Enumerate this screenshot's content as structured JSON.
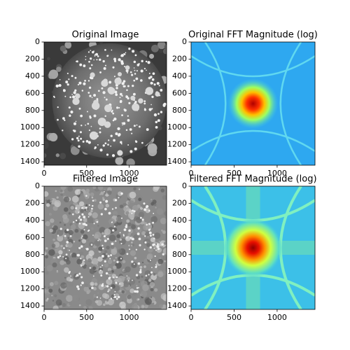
{
  "chart_data": [
    {
      "type": "image",
      "title": "Original Image",
      "cmap": "gray",
      "xlim": [
        0,
        1440
      ],
      "ylim": [
        1440,
        0
      ],
      "xticks": [
        0,
        500,
        1000
      ],
      "yticks": [
        0,
        200,
        400,
        600,
        800,
        1000,
        1200,
        1400
      ]
    },
    {
      "type": "image",
      "title": "Original FFT Magnitude (log)",
      "cmap": "jet",
      "xlim": [
        0,
        1440
      ],
      "ylim": [
        1440,
        0
      ],
      "xticks": [
        0,
        500,
        1000
      ],
      "yticks": [
        0,
        200,
        400,
        600,
        800,
        1000,
        1200,
        1400
      ]
    },
    {
      "type": "image",
      "title": "Filtered Image",
      "cmap": "gray",
      "xlim": [
        0,
        1440
      ],
      "ylim": [
        1440,
        0
      ],
      "xticks": [
        0,
        500,
        1000
      ],
      "yticks": [
        0,
        200,
        400,
        600,
        800,
        1000,
        1200,
        1400
      ]
    },
    {
      "type": "image",
      "title": "Filtered FFT Magnitude (log)",
      "cmap": "jet",
      "xlim": [
        0,
        1440
      ],
      "ylim": [
        1440,
        0
      ],
      "xticks": [
        0,
        500,
        1000
      ],
      "yticks": [
        0,
        200,
        400,
        600,
        800,
        1000,
        1200,
        1400
      ]
    }
  ]
}
